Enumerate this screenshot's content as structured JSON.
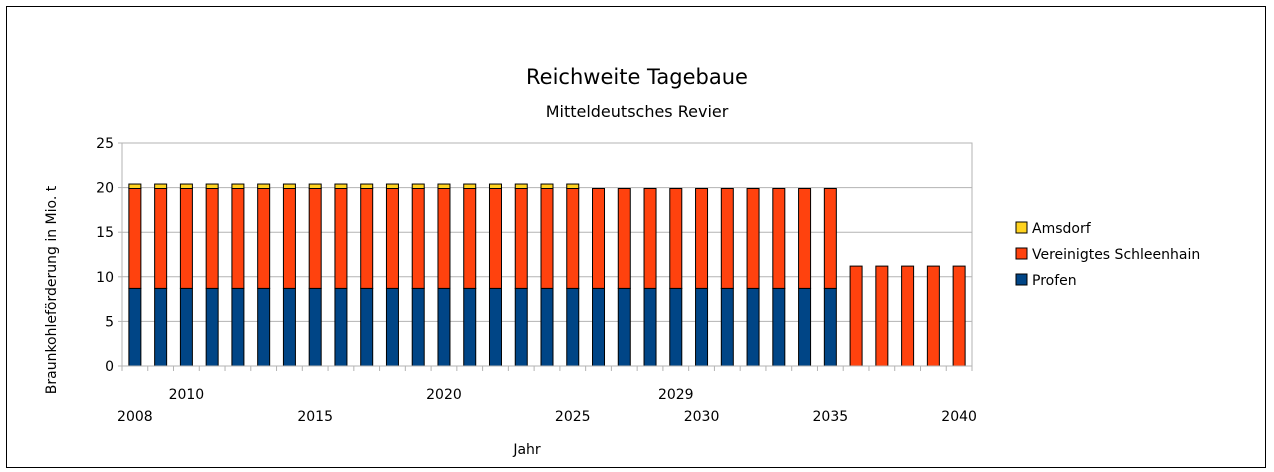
{
  "chart_data": {
    "type": "bar",
    "stacked": true,
    "title": "Reichweite Tagebaue",
    "subtitle": "Mitteldeutsches Revier",
    "xlabel": "Jahr",
    "ylabel": "Braunkohleförderung in Mio. t",
    "ylim": [
      0,
      25
    ],
    "yticks": [
      "0",
      "5",
      "10",
      "15",
      "20",
      "25"
    ],
    "grid": true,
    "legend_position": "right",
    "x_tick_labels_upper": [
      "2010",
      "2020",
      "2029"
    ],
    "x_tick_labels_lower": [
      "2008",
      "2015",
      "2025",
      "2030",
      "2035",
      "2040"
    ],
    "categories": [
      2008,
      2009,
      2010,
      2011,
      2012,
      2013,
      2014,
      2015,
      2016,
      2017,
      2018,
      2019,
      2020,
      2021,
      2022,
      2023,
      2024,
      2025,
      2026,
      2027,
      2028,
      2029,
      2030,
      2031,
      2032,
      2033,
      2034,
      2035,
      2036,
      2037,
      2038,
      2039,
      2040
    ],
    "series": [
      {
        "name": "Profen",
        "color": "#004586",
        "values": [
          8.7,
          8.7,
          8.7,
          8.7,
          8.7,
          8.7,
          8.7,
          8.7,
          8.7,
          8.7,
          8.7,
          8.7,
          8.7,
          8.7,
          8.7,
          8.7,
          8.7,
          8.7,
          8.7,
          8.7,
          8.7,
          8.7,
          8.7,
          8.7,
          8.7,
          8.7,
          8.7,
          8.7,
          0,
          0,
          0,
          0,
          0
        ]
      },
      {
        "name": "Vereinigtes Schleenhain",
        "color": "#FF420E",
        "values": [
          11.2,
          11.2,
          11.2,
          11.2,
          11.2,
          11.2,
          11.2,
          11.2,
          11.2,
          11.2,
          11.2,
          11.2,
          11.2,
          11.2,
          11.2,
          11.2,
          11.2,
          11.2,
          11.2,
          11.2,
          11.2,
          11.2,
          11.2,
          11.2,
          11.2,
          11.2,
          11.2,
          11.2,
          11.2,
          11.2,
          11.2,
          11.2,
          11.2
        ]
      },
      {
        "name": "Amsdorf",
        "color": "#FFD320",
        "values": [
          0.5,
          0.5,
          0.5,
          0.5,
          0.5,
          0.5,
          0.5,
          0.5,
          0.5,
          0.5,
          0.5,
          0.5,
          0.5,
          0.5,
          0.5,
          0.5,
          0.5,
          0.5,
          0,
          0,
          0,
          0,
          0,
          0,
          0,
          0,
          0,
          0,
          0,
          0,
          0,
          0,
          0
        ]
      }
    ],
    "legend_order": [
      "Amsdorf",
      "Vereinigtes Schleenhain",
      "Profen"
    ]
  }
}
